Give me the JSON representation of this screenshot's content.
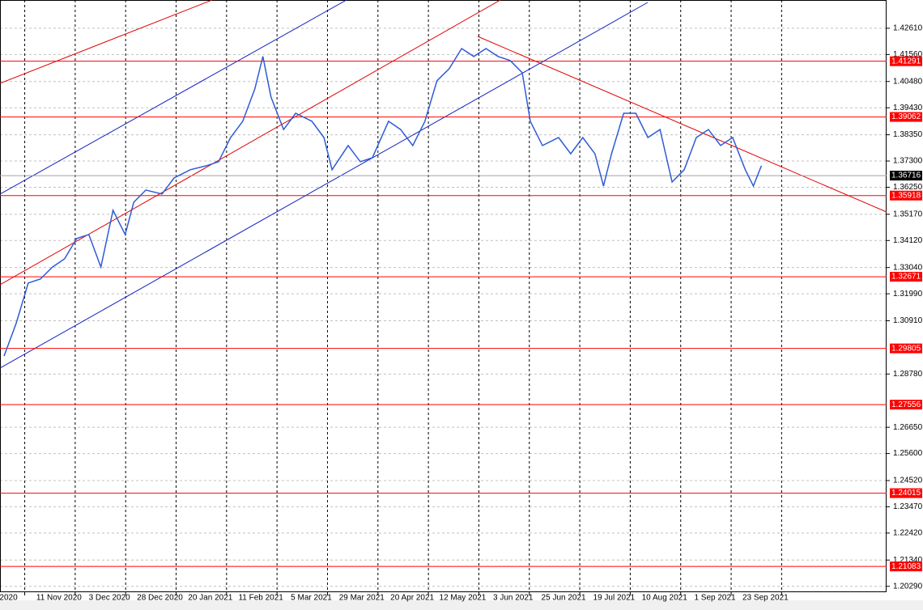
{
  "chart_data": {
    "type": "line",
    "color": "#2e5bd6",
    "xlim": [
      -0.49,
      17.08
    ],
    "ylim": [
      1.1973,
      1.4374
    ],
    "grid": true,
    "xticks": [
      {
        "value": 0,
        "label": "2020"
      },
      {
        "value": 1,
        "label": "11 Nov 2020"
      },
      {
        "value": 2,
        "label": "3 Dec 2020"
      },
      {
        "value": 3,
        "label": "28 Dec 2020"
      },
      {
        "value": 4,
        "label": "20 Jan 2021"
      },
      {
        "value": 5,
        "label": "11 Feb 2021"
      },
      {
        "value": 6,
        "label": "5 Mar 2021"
      },
      {
        "value": 7,
        "label": "29 Mar 2021"
      },
      {
        "value": 8,
        "label": "20 Apr 2021"
      },
      {
        "value": 9,
        "label": "12 May 2021"
      },
      {
        "value": 10,
        "label": "3 Jun 2021"
      },
      {
        "value": 11,
        "label": "25 Jun 2021"
      },
      {
        "value": 12,
        "label": "19 Jul 2021"
      },
      {
        "value": 13,
        "label": "10 Aug 2021"
      },
      {
        "value": 14,
        "label": "1 Sep 2021"
      },
      {
        "value": 15,
        "label": "23 Sep 2021"
      }
    ],
    "yticks": [
      {
        "value": 1.4261,
        "label": "1.42610"
      },
      {
        "value": 1.4156,
        "label": "1.41560"
      },
      {
        "value": 1.4048,
        "label": "1.40480"
      },
      {
        "value": 1.3943,
        "label": "1.39430"
      },
      {
        "value": 1.3835,
        "label": "1.38350"
      },
      {
        "value": 1.373,
        "label": "1.37300"
      },
      {
        "value": 1.3625,
        "label": "1.36250"
      },
      {
        "value": 1.3517,
        "label": "1.35170"
      },
      {
        "value": 1.3412,
        "label": "1.34120"
      },
      {
        "value": 1.3304,
        "label": "1.33040"
      },
      {
        "value": 1.3199,
        "label": "1.31990"
      },
      {
        "value": 1.3091,
        "label": "1.30910"
      },
      {
        "value": 1.2878,
        "label": "1.28780"
      },
      {
        "value": 1.2665,
        "label": "1.26650"
      },
      {
        "value": 1.256,
        "label": "1.25600"
      },
      {
        "value": 1.2452,
        "label": "1.24520"
      },
      {
        "value": 1.2347,
        "label": "1.23470"
      },
      {
        "value": 1.2242,
        "label": "1.22420"
      },
      {
        "value": 1.2134,
        "label": "1.21340"
      },
      {
        "value": 1.2029,
        "label": "1.20290"
      }
    ],
    "x": [
      -0.41,
      -0.17,
      0.07,
      0.31,
      0.55,
      0.79,
      1.03,
      1.27,
      1.51,
      1.75,
      1.99,
      2.16,
      2.4,
      2.72,
      2.96,
      3.28,
      3.6,
      3.84,
      4.08,
      4.32,
      4.56,
      4.72,
      4.88,
      5.13,
      5.37,
      5.69,
      5.93,
      6.09,
      6.41,
      6.65,
      6.89,
      7.21,
      7.45,
      7.69,
      7.93,
      8.17,
      8.41,
      8.66,
      8.9,
      9.14,
      9.38,
      9.62,
      9.86,
      10.02,
      10.26,
      10.58,
      10.82,
      11.06,
      11.3,
      11.47,
      11.63,
      11.87,
      12.11,
      12.35,
      12.59,
      12.83,
      13.07,
      13.31,
      13.55,
      13.79,
      14.03,
      14.28,
      14.44,
      14.6
    ],
    "values": [
      1.295,
      1.308,
      1.3242,
      1.3258,
      1.3306,
      1.3339,
      1.342,
      1.3436,
      1.3306,
      1.3533,
      1.3436,
      1.3565,
      1.3614,
      1.3598,
      1.3662,
      1.3695,
      1.3711,
      1.3727,
      1.3824,
      1.3889,
      1.4018,
      1.4148,
      1.3986,
      1.3856,
      1.3921,
      1.3889,
      1.3824,
      1.3695,
      1.3792,
      1.3727,
      1.3743,
      1.3889,
      1.3856,
      1.3792,
      1.3889,
      1.4051,
      1.4099,
      1.418,
      1.4148,
      1.418,
      1.4148,
      1.4132,
      1.4083,
      1.3889,
      1.3792,
      1.3824,
      1.3759,
      1.3824,
      1.3759,
      1.363,
      1.3759,
      1.3921,
      1.3921,
      1.3824,
      1.3856,
      1.3646,
      1.3695,
      1.3824,
      1.3856,
      1.3792,
      1.3824,
      1.3695,
      1.363,
      1.3711
    ],
    "levels": [
      {
        "value": 1.41291,
        "color": "#ff0000"
      },
      {
        "value": 1.39062,
        "color": "#ff0000"
      },
      {
        "value": 1.35918,
        "color": "#ff0000"
      },
      {
        "value": 1.32671,
        "color": "#ff0000"
      },
      {
        "value": 1.29805,
        "color": "#ff0000"
      },
      {
        "value": 1.27556,
        "color": "#ff0000"
      },
      {
        "value": 1.24015,
        "color": "#ff0000"
      },
      {
        "value": 1.21083,
        "color": "#ff0000"
      }
    ],
    "current_price": 1.36716
  }
}
